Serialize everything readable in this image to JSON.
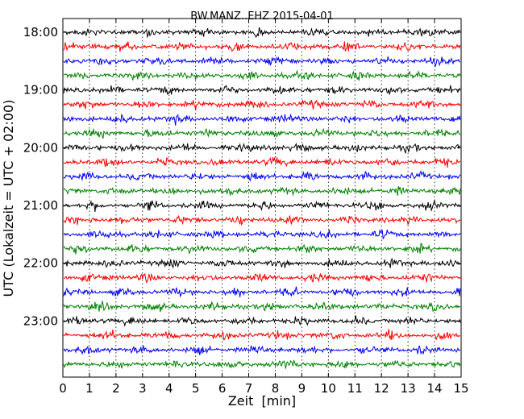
{
  "chart_data": {
    "type": "line",
    "subtype": "dayplot",
    "title": "BW.MANZ..EHZ 2015-04-01",
    "xlabel": "Zeit  [min]",
    "ylabel": "UTC (Lokalzeit = UTC + 02:00)",
    "xlim": [
      0,
      15
    ],
    "x_ticks": [
      "0",
      "1",
      "2",
      "3",
      "4",
      "5",
      "6",
      "7",
      "8",
      "9",
      "10",
      "11",
      "12",
      "13",
      "14",
      "15"
    ],
    "y_tick_labels": [
      "18:00",
      "19:00",
      "20:00",
      "21:00",
      "22:00",
      "23:00"
    ],
    "trace_start_times": [
      "18:00",
      "18:15",
      "18:30",
      "18:45",
      "19:00",
      "19:15",
      "19:30",
      "19:45",
      "20:00",
      "20:15",
      "20:30",
      "20:45",
      "21:00",
      "21:15",
      "21:30",
      "21:45",
      "22:00",
      "22:15",
      "22:30",
      "22:45",
      "23:00",
      "23:15",
      "23:30",
      "23:45"
    ],
    "trace_colors": [
      "#000000",
      "#ff0000",
      "#0000ff",
      "#008000"
    ],
    "trace_amplitude_approx": 0.12,
    "grid": "vertical dotted"
  }
}
